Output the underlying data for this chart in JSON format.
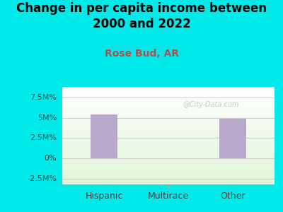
{
  "title": "Change in per capita income between\n2000 and 2022",
  "subtitle": "Rose Bud, AR",
  "categories": [
    "Hispanic",
    "Multirace",
    "Other"
  ],
  "values": [
    5.4,
    0,
    4.9
  ],
  "bar_color": "#b8a8cc",
  "background_outer": "#00eaea",
  "title_fontsize": 12,
  "title_fontweight": "bold",
  "subtitle_fontsize": 10,
  "subtitle_color": "#b05050",
  "yticks": [
    -2.5,
    0,
    2.5,
    5.0,
    7.5
  ],
  "ytick_labels": [
    "-2.5M%",
    "0%",
    "2.5M%",
    "5M%",
    "7.5M%"
  ],
  "ylim": [
    -3.2,
    8.8
  ],
  "xlim": [
    -0.65,
    2.65
  ],
  "watermark": "@City-Data.com",
  "watermark_color": "#aaaaaa",
  "grid_color": "#cccccc",
  "tick_label_fontsize": 8,
  "xtick_label_fontsize": 9
}
